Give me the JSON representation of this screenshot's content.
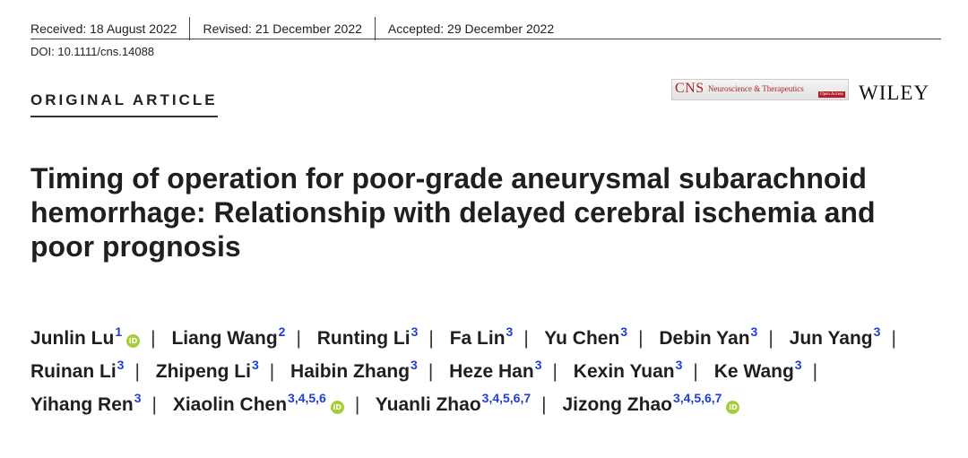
{
  "header": {
    "received": "Received: 18 August 2022",
    "revised": "Revised: 21 December 2022",
    "accepted": "Accepted: 29 December 2022",
    "doi": "DOI: 10.1111/cns.14088",
    "article_type": "ORIGINAL ARTICLE"
  },
  "journal": {
    "abbrev": "CNS",
    "name": "Neuroscience & Therapeutics",
    "access": "Open Access",
    "publisher": "WILEY"
  },
  "title": "Timing of operation for poor-grade aneurysmal subarachnoid hemorrhage: Relationship with delayed cerebral ischemia and poor prognosis",
  "orcid_icon_text": "iD",
  "authors": [
    {
      "name": "Junlin Lu",
      "aff": "1",
      "orcid": true
    },
    {
      "name": "Liang Wang",
      "aff": "2",
      "orcid": false
    },
    {
      "name": "Runting Li",
      "aff": "3",
      "orcid": false
    },
    {
      "name": "Fa Lin",
      "aff": "3",
      "orcid": false
    },
    {
      "name": "Yu Chen",
      "aff": "3",
      "orcid": false
    },
    {
      "name": "Debin Yan",
      "aff": "3",
      "orcid": false
    },
    {
      "name": "Jun Yang",
      "aff": "3",
      "orcid": false
    },
    {
      "name": "Ruinan Li",
      "aff": "3",
      "orcid": false
    },
    {
      "name": "Zhipeng Li",
      "aff": "3",
      "orcid": false
    },
    {
      "name": "Haibin Zhang",
      "aff": "3",
      "orcid": false
    },
    {
      "name": "Heze Han",
      "aff": "3",
      "orcid": false
    },
    {
      "name": "Kexin Yuan",
      "aff": "3",
      "orcid": false
    },
    {
      "name": "Ke Wang",
      "aff": "3",
      "orcid": false
    },
    {
      "name": "Yihang Ren",
      "aff": "3",
      "orcid": false
    },
    {
      "name": "Xiaolin Chen",
      "aff": "3,4,5,6",
      "orcid": true
    },
    {
      "name": "Yuanli Zhao",
      "aff": "3,4,5,6,7",
      "orcid": false
    },
    {
      "name": "Jizong Zhao",
      "aff": "3,4,5,6,7",
      "orcid": true
    }
  ]
}
